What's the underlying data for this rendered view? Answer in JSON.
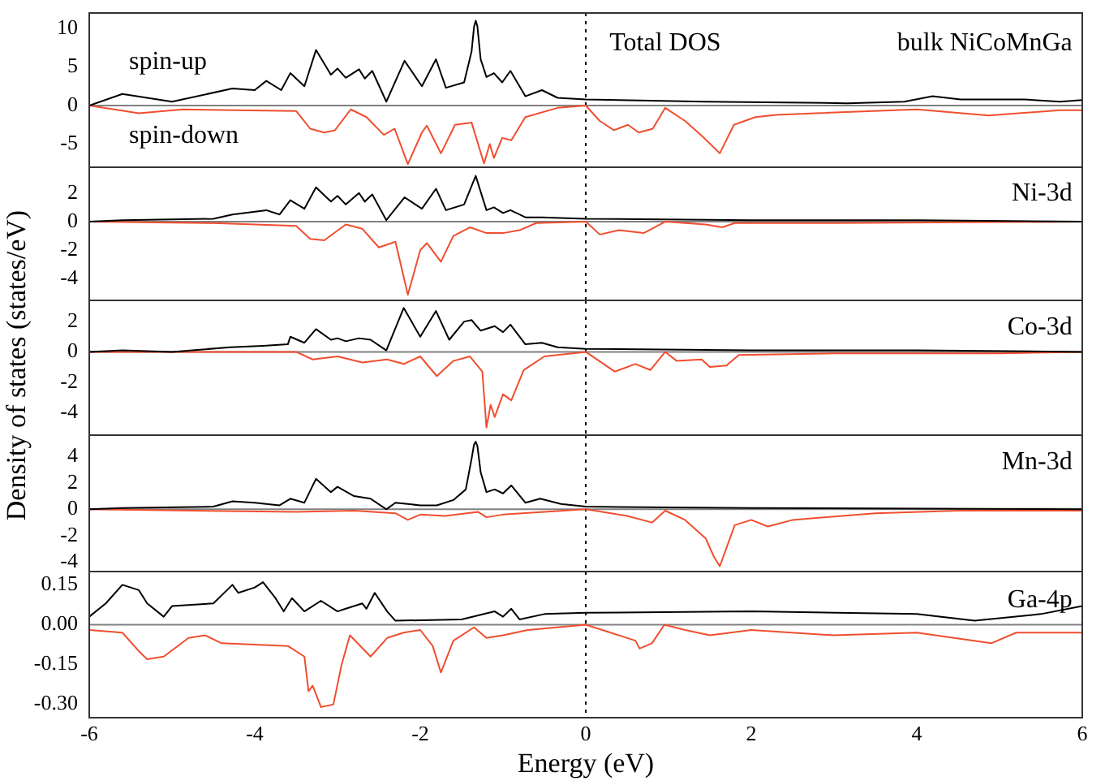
{
  "chart_data": [
    {
      "type": "line",
      "xlim": [
        -6,
        6
      ],
      "xticks": [
        -6,
        -4,
        -2,
        0,
        2,
        4,
        6
      ],
      "ylim": [
        -8,
        12
      ],
      "yticks": [
        -5,
        0,
        5,
        10
      ],
      "tick_labels": "y",
      "annotations": [
        "bulk NiCoMnGa",
        "Total DOS",
        "spin-up",
        "spin-down"
      ],
      "ref_lines": [
        {
          "axis": "x",
          "value": 0,
          "line_style": "dotted",
          "color": "#000000"
        },
        {
          "axis": "y",
          "value": 0,
          "color": "#808080"
        }
      ],
      "series": [
        {
          "color": "#000000",
          "x": [
            -6,
            -5.6,
            -5.3,
            -5,
            -4.27,
            -4,
            -3.86,
            -3.68,
            -3.57,
            -3.4,
            -3.26,
            -3.08,
            -3,
            -2.9,
            -2.74,
            -2.67,
            -2.58,
            -2.41,
            -2.19,
            -1.98,
            -1.81,
            -1.69,
            -1.47,
            -1.38,
            -1.35,
            -1.33,
            -1.31,
            -1.27,
            -1.2,
            -1.11,
            -1.01,
            -0.91,
            -0.73,
            -0.53,
            -0.34,
            0,
            1.45,
            3.16,
            3.85,
            4.19,
            4.53,
            5.3,
            5.73,
            6
          ],
          "values": [
            0,
            1.5,
            1,
            0.5,
            2.2,
            2,
            3.2,
            2,
            4.2,
            2.5,
            7.2,
            4,
            4.8,
            3.6,
            4.7,
            3.5,
            4.5,
            0.5,
            5.8,
            2.5,
            6,
            2.3,
            3,
            7,
            10.2,
            11,
            10.3,
            6,
            3.7,
            4.2,
            3,
            4.5,
            1.2,
            2,
            1,
            0.8,
            0.5,
            0.3,
            0.5,
            1.2,
            0.8,
            0.8,
            0.5,
            0.7
          ]
        },
        {
          "color": "#f04e2f",
          "x": [
            -6,
            -5.4,
            -4.87,
            -3.5,
            -3.33,
            -3.16,
            -3.03,
            -2.84,
            -2.65,
            -2.44,
            -2.31,
            -2.15,
            -1.98,
            -1.92,
            -1.75,
            -1.58,
            -1.38,
            -1.23,
            -1.16,
            -1.11,
            -1.01,
            -0.9,
            -0.73,
            -0.34,
            0,
            0.17,
            0.34,
            0.51,
            0.64,
            0.81,
            0.96,
            1.2,
            1.41,
            1.62,
            1.79,
            2.05,
            2.3,
            4,
            4.87,
            5.73,
            6
          ],
          "values": [
            0,
            -1,
            -0.5,
            -0.7,
            -3,
            -3.5,
            -3.2,
            -0.5,
            -1.5,
            -3.8,
            -3,
            -7.6,
            -3.5,
            -2.6,
            -6.2,
            -2.5,
            -2.2,
            -7.5,
            -5,
            -6.8,
            -4.2,
            -4.5,
            -1.5,
            -0.3,
            0,
            -2,
            -3.2,
            -2.5,
            -3.5,
            -3,
            -0.3,
            -2,
            -4,
            -6.2,
            -2.5,
            -1.5,
            -1.2,
            -0.5,
            -1.3,
            -0.6,
            -0.6
          ]
        }
      ]
    },
    {
      "type": "line",
      "xlim": [
        -6,
        6
      ],
      "xticks": [
        -6,
        -4,
        -2,
        0,
        2,
        4,
        6
      ],
      "ylim": [
        -5.5,
        3.8
      ],
      "yticks": [
        -4,
        -2,
        0,
        2
      ],
      "tick_labels": "y",
      "annotations": [
        "Ni-3d"
      ],
      "ref_lines": [
        {
          "axis": "x",
          "value": 0,
          "line_style": "dotted",
          "color": "#000000"
        },
        {
          "axis": "y",
          "value": 0,
          "color": "#808080"
        }
      ],
      "series": [
        {
          "color": "#000000",
          "x": [
            -6,
            -5.6,
            -4.5,
            -4.27,
            -3.86,
            -3.7,
            -3.57,
            -3.4,
            -3.26,
            -3.08,
            -3,
            -2.9,
            -2.74,
            -2.67,
            -2.58,
            -2.41,
            -2.19,
            -1.98,
            -1.81,
            -1.69,
            -1.47,
            -1.33,
            -1.2,
            -1.11,
            -1,
            -0.91,
            -0.73,
            -0.53,
            0,
            2,
            4,
            6
          ],
          "values": [
            0,
            0.1,
            0.2,
            0.5,
            0.8,
            0.5,
            1.5,
            0.9,
            2.4,
            1.4,
            1.8,
            1.2,
            2,
            1.4,
            1.9,
            0.1,
            1.7,
            0.9,
            2.3,
            0.8,
            1.2,
            3.2,
            0.8,
            1,
            0.6,
            0.8,
            0.3,
            0.3,
            0.2,
            0.1,
            0.1,
            0
          ]
        },
        {
          "color": "#f04e2f",
          "x": [
            -6,
            -4.5,
            -3.5,
            -3.33,
            -3.16,
            -2.9,
            -2.7,
            -2.5,
            -2.3,
            -2.15,
            -2,
            -1.92,
            -1.75,
            -1.6,
            -1.4,
            -1.2,
            -1,
            -0.8,
            -0.6,
            0,
            0.17,
            0.4,
            0.7,
            0.96,
            1.45,
            1.65,
            1.8,
            3,
            6
          ],
          "values": [
            0,
            -0.1,
            -0.3,
            -1.2,
            -1.3,
            -0.2,
            -0.5,
            -1.8,
            -1.4,
            -5.1,
            -2,
            -1.5,
            -2.8,
            -1,
            -0.4,
            -0.8,
            -0.8,
            -0.6,
            -0.1,
            0,
            -0.9,
            -0.6,
            -0.8,
            0,
            -0.2,
            -0.4,
            -0.1,
            -0.1,
            0
          ]
        }
      ]
    },
    {
      "type": "line",
      "xlim": [
        -6,
        6
      ],
      "xticks": [
        -6,
        -4,
        -2,
        0,
        2,
        4,
        6
      ],
      "ylim": [
        -5.5,
        3.4
      ],
      "yticks": [
        -4,
        -2,
        0,
        2
      ],
      "tick_labels": "y",
      "ylabel": "Density of states (states/eV)",
      "annotations": [
        "Co-3d"
      ],
      "ref_lines": [
        {
          "axis": "x",
          "value": 0,
          "line_style": "dotted",
          "color": "#000000"
        },
        {
          "axis": "y",
          "value": 0,
          "color": "#808080"
        }
      ],
      "series": [
        {
          "color": "#000000",
          "x": [
            -6,
            -5.6,
            -5,
            -4.3,
            -3.9,
            -3.6,
            -3.57,
            -3.4,
            -3.26,
            -3.08,
            -3,
            -2.9,
            -2.74,
            -2.6,
            -2.41,
            -2.2,
            -2,
            -1.81,
            -1.65,
            -1.47,
            -1.38,
            -1.27,
            -1.1,
            -1,
            -0.91,
            -0.73,
            -0.53,
            -0.34,
            0,
            2,
            4,
            6
          ],
          "values": [
            0,
            0.1,
            0,
            0.3,
            0.4,
            0.5,
            1,
            0.6,
            1.5,
            0.8,
            0.9,
            0.7,
            0.9,
            0.8,
            0.1,
            2.9,
            1,
            2.7,
            0.8,
            2,
            2.1,
            1.4,
            1.7,
            1.3,
            1.8,
            0.5,
            0.6,
            0.3,
            0.2,
            0.1,
            0.1,
            0
          ]
        },
        {
          "color": "#f04e2f",
          "x": [
            -6,
            -3.5,
            -3.3,
            -3,
            -2.7,
            -2.4,
            -2.2,
            -2,
            -1.8,
            -1.6,
            -1.4,
            -1.25,
            -1.2,
            -1.15,
            -1.1,
            -1,
            -0.9,
            -0.75,
            -0.5,
            0,
            0.35,
            0.6,
            0.78,
            0.96,
            1.1,
            1.4,
            1.5,
            1.7,
            1.85,
            3,
            5,
            6
          ],
          "values": [
            0,
            0,
            -0.5,
            -0.3,
            -0.7,
            -0.5,
            -0.8,
            -0.3,
            -1.6,
            -0.6,
            -0.3,
            -1.3,
            -5,
            -3.5,
            -4.3,
            -2.8,
            -3.2,
            -1.2,
            -0.3,
            0,
            -1.3,
            -0.8,
            -1.2,
            0,
            -0.6,
            -0.5,
            -1,
            -0.9,
            -0.2,
            -0.1,
            -0.1,
            0
          ]
        }
      ]
    },
    {
      "type": "line",
      "xlim": [
        -6,
        6
      ],
      "xticks": [
        -6,
        -4,
        -2,
        0,
        2,
        4,
        6
      ],
      "ylim": [
        -4.7,
        5.6
      ],
      "yticks": [
        -4,
        -2,
        0,
        2,
        4
      ],
      "tick_labels": "y",
      "annotations": [
        "Mn-3d"
      ],
      "ref_lines": [
        {
          "axis": "x",
          "value": 0,
          "line_style": "dotted",
          "color": "#000000"
        },
        {
          "axis": "y",
          "value": 0,
          "color": "#808080"
        }
      ],
      "series": [
        {
          "color": "#000000",
          "x": [
            -6,
            -5.6,
            -4.5,
            -4.27,
            -4,
            -3.7,
            -3.57,
            -3.4,
            -3.26,
            -3.08,
            -3,
            -2.8,
            -2.6,
            -2.41,
            -2.3,
            -2,
            -1.8,
            -1.6,
            -1.45,
            -1.38,
            -1.35,
            -1.33,
            -1.31,
            -1.27,
            -1.2,
            -1.1,
            -1,
            -0.9,
            -0.73,
            -0.55,
            -0.3,
            0,
            2,
            6
          ],
          "values": [
            0,
            0.1,
            0.2,
            0.6,
            0.5,
            0.3,
            0.8,
            0.5,
            2.3,
            1.3,
            1.7,
            1,
            0.8,
            0,
            0.5,
            0.3,
            0.3,
            0.7,
            1.5,
            3.8,
            4.9,
            5.1,
            4.8,
            2.8,
            1.3,
            1.5,
            1.2,
            1.8,
            0.5,
            0.8,
            0.4,
            0.2,
            0.1,
            0
          ]
        },
        {
          "color": "#f04e2f",
          "x": [
            -6,
            -3.5,
            -2.8,
            -2.3,
            -2.15,
            -2,
            -1.7,
            -1.3,
            -1.2,
            -1,
            -0.5,
            0,
            0.5,
            0.8,
            0.96,
            1.2,
            1.45,
            1.55,
            1.62,
            1.8,
            2,
            2.2,
            2.5,
            3.5,
            4.5,
            6
          ],
          "values": [
            0,
            -0.2,
            -0.1,
            -0.3,
            -0.8,
            -0.4,
            -0.5,
            -0.2,
            -0.6,
            -0.4,
            -0.2,
            0,
            -0.5,
            -1,
            -0.1,
            -0.8,
            -2.2,
            -3.6,
            -4.3,
            -1.2,
            -0.8,
            -1.3,
            -0.8,
            -0.3,
            -0.1,
            -0.1
          ]
        }
      ]
    },
    {
      "type": "line",
      "xlim": [
        -6,
        6
      ],
      "xticks": [
        -6,
        -4,
        -2,
        0,
        2,
        4,
        6
      ],
      "ylim": [
        -0.35,
        0.2
      ],
      "yticks": [
        {
          "value": -0.3,
          "label": "-0.30"
        },
        {
          "value": -0.15,
          "label": "-0.15"
        },
        {
          "value": 0,
          "label": "0.00"
        },
        {
          "value": 0.15,
          "label": "0.15"
        }
      ],
      "xlabel": "Energy (eV)",
      "annotations": [
        "Ga-4p"
      ],
      "ref_lines": [
        {
          "axis": "x",
          "value": 0,
          "line_style": "dotted",
          "color": "#000000"
        },
        {
          "axis": "y",
          "value": 0,
          "color": "#808080"
        }
      ],
      "series": [
        {
          "color": "#000000",
          "x": [
            -6,
            -5.8,
            -5.6,
            -5.4,
            -5.3,
            -5.1,
            -5,
            -4.5,
            -4.27,
            -4.2,
            -4,
            -3.9,
            -3.75,
            -3.65,
            -3.55,
            -3.4,
            -3.2,
            -3,
            -2.9,
            -2.7,
            -2.65,
            -2.55,
            -2.4,
            -2.3,
            -1.5,
            -1.1,
            -1,
            -0.9,
            -0.8,
            -0.5,
            0,
            2,
            4,
            4.7,
            5.5,
            6
          ],
          "values": [
            0.03,
            0.08,
            0.15,
            0.13,
            0.08,
            0.03,
            0.07,
            0.08,
            0.15,
            0.12,
            0.14,
            0.16,
            0.1,
            0.05,
            0.1,
            0.05,
            0.09,
            0.05,
            0.06,
            0.08,
            0.06,
            0.12,
            0.05,
            0.015,
            0.02,
            0.05,
            0.03,
            0.06,
            0.02,
            0.04,
            0.045,
            0.05,
            0.04,
            0.015,
            0.04,
            0.07
          ]
        },
        {
          "color": "#f04e2f",
          "x": [
            -6,
            -5.6,
            -5.4,
            -5.3,
            -5.1,
            -4.8,
            -4.6,
            -4.4,
            -3.6,
            -3.4,
            -3.35,
            -3.3,
            -3.2,
            -3.05,
            -2.95,
            -2.85,
            -2.6,
            -2.4,
            -2.2,
            -2,
            -1.85,
            -1.75,
            -1.6,
            -1.35,
            -1.2,
            -1,
            -0.7,
            0,
            0.3,
            0.6,
            0.65,
            0.8,
            0.95,
            1.2,
            1.5,
            2,
            3,
            4,
            4.9,
            5.2,
            6
          ],
          "values": [
            -0.02,
            -0.03,
            -0.1,
            -0.13,
            -0.12,
            -0.05,
            -0.04,
            -0.07,
            -0.08,
            -0.12,
            -0.25,
            -0.23,
            -0.31,
            -0.3,
            -0.15,
            -0.04,
            -0.12,
            -0.05,
            -0.03,
            -0.02,
            -0.08,
            -0.18,
            -0.06,
            -0.01,
            -0.05,
            -0.04,
            -0.02,
            0,
            -0.03,
            -0.06,
            -0.09,
            -0.07,
            0,
            -0.02,
            -0.04,
            -0.02,
            -0.04,
            -0.03,
            -0.07,
            -0.03,
            -0.03
          ]
        }
      ]
    }
  ]
}
